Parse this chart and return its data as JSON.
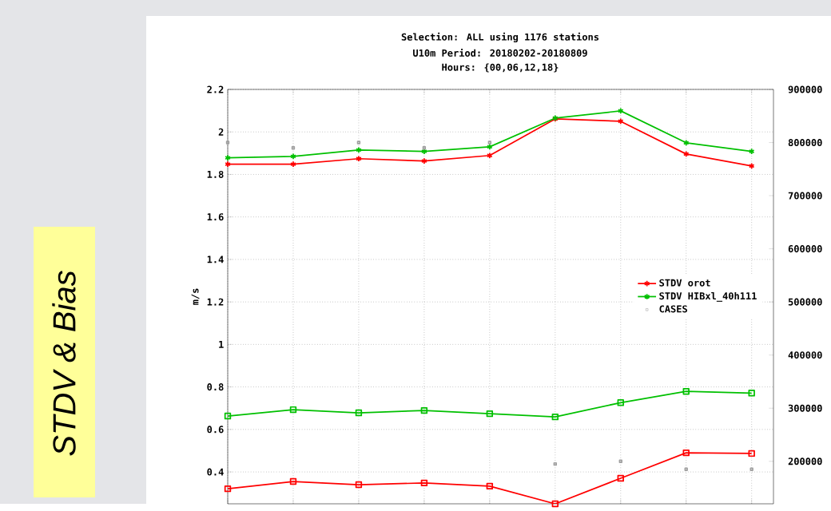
{
  "chart_data": {
    "type": "line",
    "title": "Selection: ALL using  1176 stations",
    "subtitle": "U10m   Period: 20180202-20180809",
    "annotations": [
      "Hours: {00,06,12,18}",
      "STDV & Bias"
    ],
    "ylabel": "m/s",
    "categories": [
      null,
      null,
      null,
      null,
      null,
      null,
      null,
      null,
      null
    ],
    "series": [
      {
        "name": "STDV orot",
        "color": "#ff0000",
        "marker": "cross",
        "values": [
          1.848,
          1.848,
          1.874,
          1.863,
          1.889,
          2.061,
          2.05,
          1.896,
          1.84
        ]
      },
      {
        "name": "STDV HIBxl_40h111",
        "color": "#00c000",
        "marker": "cross",
        "values": [
          1.878,
          1.885,
          1.915,
          1.908,
          1.93,
          2.065,
          2.099,
          1.949,
          1.908
        ]
      },
      {
        "color": "#00c000",
        "marker": "square",
        "values": [
          0.663,
          0.693,
          0.678,
          0.689,
          0.674,
          0.659,
          0.726,
          0.779,
          0.771
        ]
      },
      {
        "color": "#ff0000",
        "marker": "square",
        "values": [
          0.321,
          0.355,
          0.34,
          0.348,
          0.333,
          0.25,
          0.37,
          0.49,
          0.487
        ]
      },
      {
        "name": "CASES",
        "type": "scatter",
        "axis": "y2",
        "color": "#a0a0a0",
        "marker": "square",
        "values": [
          800000,
          790000,
          800000,
          790000,
          800000,
          195000,
          200000,
          185000,
          185000
        ]
      }
    ],
    "ylim": [
      0.25,
      2.2
    ],
    "yticks": [
      0.4,
      0.6,
      0.8,
      1,
      1.2,
      1.4,
      1.6,
      1.8,
      2,
      2.2
    ],
    "y2lim": [
      120000,
      900000
    ],
    "y2ticks": [
      200000,
      300000,
      400000,
      500000,
      600000,
      700000,
      800000,
      900000
    ],
    "grid": true,
    "legend": "right"
  }
}
